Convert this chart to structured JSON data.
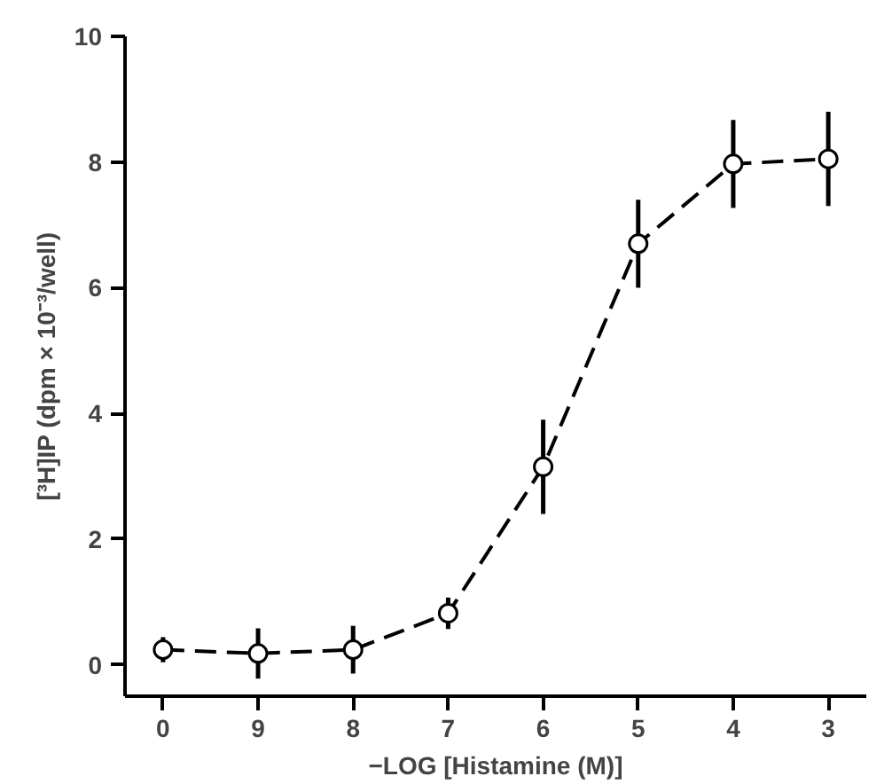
{
  "chart_data": {
    "type": "line",
    "xlabel": "−LOG [Histamine (M)]",
    "ylabel": "[³H]IP (dpm × 10⁻³/well)",
    "categories": [
      "0",
      "9",
      "8",
      "7",
      "6",
      "5",
      "4",
      "3"
    ],
    "series": [
      {
        "color": "#000000",
        "values": [
          0.24,
          0.18,
          0.24,
          0.82,
          3.15,
          6.7,
          7.97,
          8.05
        ],
        "errors": [
          0.2,
          0.4,
          0.38,
          0.25,
          0.75,
          0.7,
          0.7,
          0.75
        ]
      }
    ],
    "ylim": [
      -0.5,
      10
    ],
    "yticks": [
      0,
      2,
      4,
      6,
      8,
      10
    ],
    "grid": false,
    "marker": "circle",
    "line_style": "dashed"
  }
}
